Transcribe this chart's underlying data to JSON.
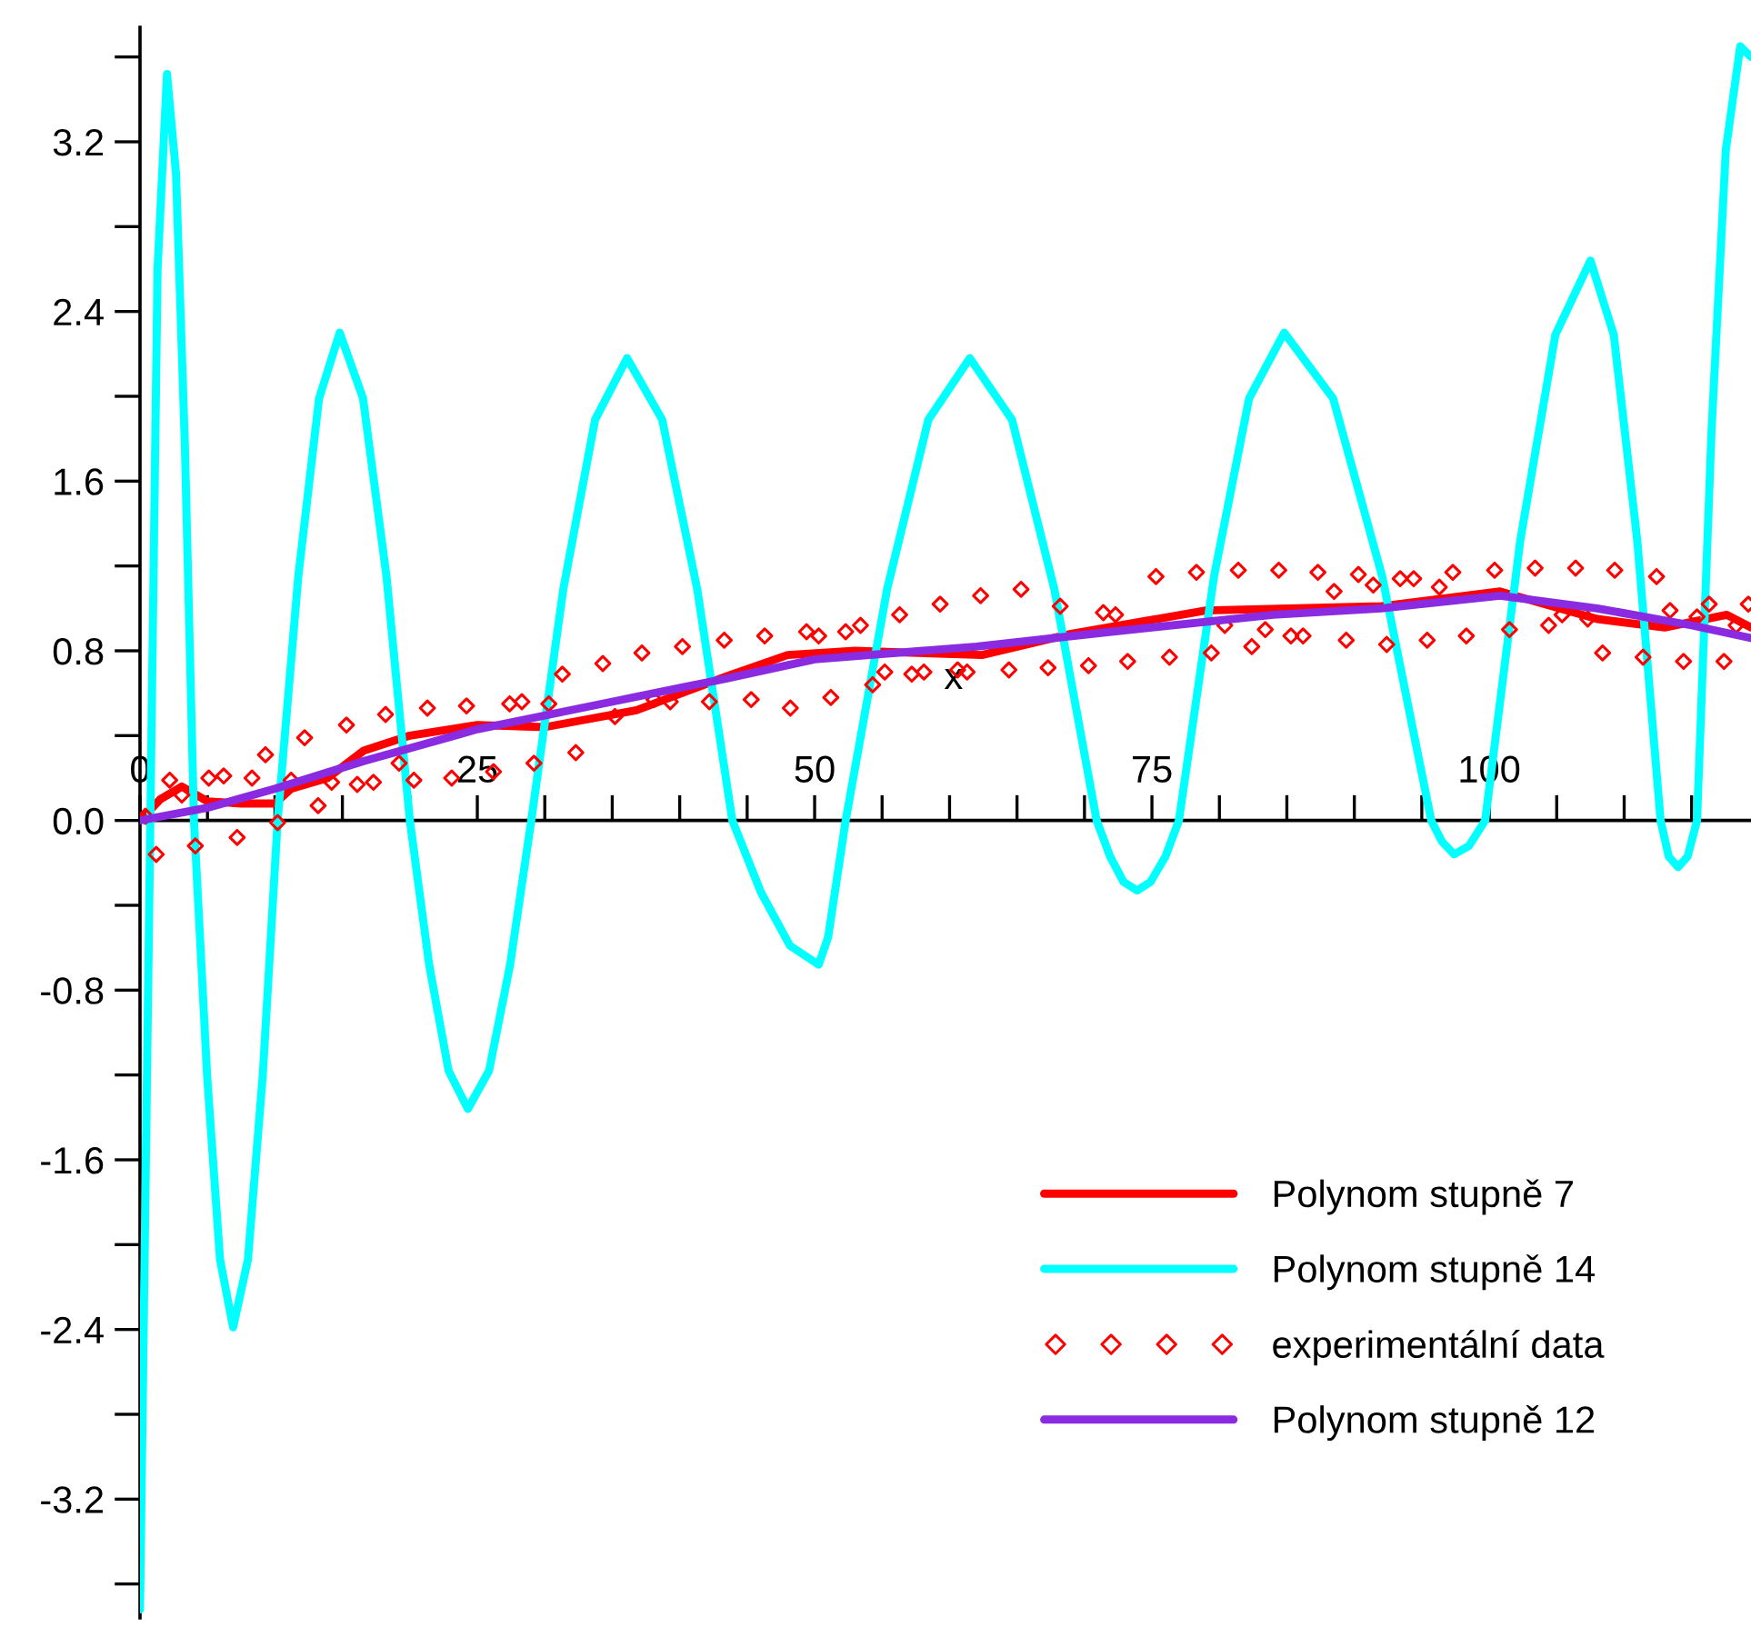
{
  "chart_data": {
    "type": "line",
    "xlabel": "x",
    "xlim": [
      0,
      119.4
    ],
    "ylim": [
      -3.76,
      3.74
    ],
    "xticks": [
      {
        "value": 0,
        "label": "0"
      },
      {
        "value": 5,
        "label": null
      },
      {
        "value": 10,
        "label": null
      },
      {
        "value": 15,
        "label": null
      },
      {
        "value": 20,
        "label": null
      },
      25,
      {
        "value": 30,
        "label": null
      },
      {
        "value": 35,
        "label": null
      },
      {
        "value": 40,
        "label": null
      },
      {
        "value": 45,
        "label": null
      },
      50,
      {
        "value": 55,
        "label": null
      },
      {
        "value": 60,
        "label": null
      },
      {
        "value": 65,
        "label": null
      },
      {
        "value": 70,
        "label": null
      },
      75,
      {
        "value": 80,
        "label": null
      },
      {
        "value": 85,
        "label": null
      },
      {
        "value": 90,
        "label": null
      },
      {
        "value": 95,
        "label": null
      },
      100,
      {
        "value": 105,
        "label": null
      },
      {
        "value": 110,
        "label": null
      },
      {
        "value": 115,
        "label": null
      }
    ],
    "yticks": [
      {
        "value": -3.6,
        "label": null
      },
      -3.2,
      {
        "value": -2.8,
        "label": null
      },
      -2.4,
      {
        "value": -2.0,
        "label": null
      },
      -1.6,
      {
        "value": -1.2,
        "label": null
      },
      -0.8,
      {
        "value": -0.4,
        "label": null
      },
      {
        "value": 0,
        "label": "0.0"
      },
      {
        "value": 0.4,
        "label": null
      },
      0.8,
      {
        "value": 1.2,
        "label": null
      },
      1.6,
      {
        "value": 2.0,
        "label": null
      },
      2.4,
      {
        "value": 2.8,
        "label": null
      },
      3.2,
      {
        "value": 3.6,
        "label": null
      }
    ],
    "grid": false,
    "legend": "bottom right",
    "series": [
      {
        "name": "Polynom stupně 7",
        "color": "#ff0000",
        "marker": "none",
        "line_style": "solid",
        "x": [
          0,
          1.5,
          3.1,
          5,
          7.5,
          10,
          11.2,
          13.9,
          16.6,
          20,
          25,
          30,
          36.8,
          43.5,
          48,
          53,
          62.4,
          69,
          79,
          92,
          100.8,
          108,
          113,
          117.6,
          119.4
        ],
        "values": [
          0,
          0.1,
          0.16,
          0.09,
          0.08,
          0.08,
          0.15,
          0.2,
          0.33,
          0.4,
          0.45,
          0.44,
          0.52,
          0.68,
          0.78,
          0.8,
          0.78,
          0.88,
          0.99,
          1.01,
          1.08,
          0.95,
          0.91,
          0.97,
          0.91
        ]
      },
      {
        "name": "Polynom stupně 14",
        "color": "#00ffff",
        "marker": "none",
        "line_style": "solid",
        "x": [
          0,
          1.3,
          2.0,
          2.67,
          3.33,
          4.0,
          4.97,
          5.93,
          6.9,
          8.0,
          9.1,
          10.2,
          11.73,
          13.27,
          14.8,
          16.53,
          18.27,
          20.0,
          21.43,
          22.87,
          24.3,
          25.87,
          27.43,
          29.0,
          31.37,
          33.73,
          36.1,
          38.7,
          41.3,
          43.9,
          46.03,
          48.17,
          50.3,
          51.0,
          52.3,
          55.37,
          58.43,
          61.5,
          64.63,
          67.77,
          70.9,
          71.9,
          72.9,
          73.9,
          74.9,
          76.0,
          77.0,
          79.6,
          82.2,
          84.8,
          88.43,
          92.07,
          95.7,
          96.5,
          97.4,
          98.5,
          99.7,
          102.3,
          104.9,
          107.5,
          109.23,
          110.97,
          112.7,
          113.3,
          114.0,
          114.7,
          115.4,
          116.47,
          117.53,
          118.6,
          119.4
        ],
        "values": [
          -3.72,
          2.6,
          3.52,
          3.05,
          1.76,
          0,
          -1.2,
          -2.07,
          -2.39,
          -2.07,
          -1.2,
          0,
          1.15,
          1.99,
          2.3,
          1.99,
          1.15,
          0,
          -0.68,
          -1.18,
          -1.36,
          -1.18,
          -0.68,
          0,
          1.09,
          1.89,
          2.18,
          1.89,
          1.09,
          0,
          -0.34,
          -0.59,
          -0.68,
          -0.55,
          0,
          1.09,
          1.89,
          2.18,
          1.89,
          1.09,
          0,
          -0.17,
          -0.29,
          -0.33,
          -0.29,
          -0.17,
          0,
          1.15,
          1.99,
          2.3,
          1.99,
          1.15,
          0,
          -0.1,
          -0.16,
          -0.12,
          0,
          1.32,
          2.29,
          2.64,
          2.29,
          1.32,
          0,
          -0.17,
          -0.22,
          -0.17,
          0,
          1.83,
          3.16,
          3.65,
          3.6
        ]
      },
      {
        "name": "experimentální data",
        "type": "scatter",
        "color": "#ff0000",
        "marker": "diamond",
        "x": [
          0.4,
          1.2,
          2.2,
          3.1,
          4.1,
          5.1,
          6.2,
          7.2,
          8.3,
          9.3,
          10.2,
          11.2,
          12.2,
          13.2,
          14.2,
          15.3,
          16.1,
          17.3,
          18.2,
          19.2,
          20.3,
          21.3,
          23.1,
          24.2,
          26.2,
          27.4,
          28.3,
          29.2,
          30.3,
          31.3,
          32.3,
          34.3,
          35.2,
          37.2,
          38.1,
          39.3,
          40.2,
          42.2,
          43.3,
          45.3,
          46.3,
          48.2,
          49.4,
          50.3,
          51.2,
          52.3,
          53.4,
          54.3,
          55.2,
          56.3,
          57.2,
          58.1,
          59.3,
          60.6,
          61.3,
          62.3,
          64.4,
          65.3,
          67.3,
          68.2,
          70.3,
          71.4,
          72.3,
          73.2,
          75.3,
          76.3,
          78.3,
          79.4,
          80.4,
          81.4,
          82.4,
          83.4,
          84.4,
          85.3,
          86.2,
          87.3,
          88.5,
          89.4,
          90.3,
          91.4,
          92.4,
          93.4,
          94.4,
          95.4,
          96.3,
          97.3,
          98.3,
          100.4,
          101.5,
          103.4,
          104.4,
          105.4,
          106.4,
          107.3,
          108.4,
          109.3,
          111.4,
          112.4,
          113.4,
          114.4,
          115.4,
          116.3,
          117.4,
          118.3,
          119.2
        ],
        "values": [
          0.02,
          -0.16,
          0.19,
          0.12,
          -0.12,
          0.2,
          0.21,
          -0.08,
          0.2,
          0.31,
          -0.01,
          0.19,
          0.39,
          0.07,
          0.18,
          0.45,
          0.17,
          0.18,
          0.5,
          0.27,
          0.19,
          0.53,
          0.2,
          0.54,
          0.23,
          0.55,
          0.56,
          0.27,
          0.55,
          0.69,
          0.32,
          0.74,
          0.49,
          0.79,
          0.57,
          0.56,
          0.82,
          0.56,
          0.85,
          0.57,
          0.87,
          0.53,
          0.89,
          0.87,
          0.58,
          0.89,
          0.92,
          0.64,
          0.7,
          0.97,
          0.69,
          0.7,
          1.02,
          0.71,
          0.7,
          1.06,
          0.71,
          1.09,
          0.72,
          1.01,
          0.73,
          0.98,
          0.97,
          0.75,
          1.15,
          0.77,
          1.17,
          0.79,
          0.92,
          1.18,
          0.82,
          0.9,
          1.18,
          0.87,
          0.87,
          1.17,
          1.08,
          0.85,
          1.16,
          1.11,
          0.83,
          1.14,
          1.14,
          0.85,
          1.1,
          1.17,
          0.87,
          1.18,
          0.9,
          1.19,
          0.92,
          0.97,
          1.19,
          0.95,
          0.79,
          1.18,
          0.77,
          1.15,
          0.99,
          0.75,
          0.96,
          1.02,
          0.75,
          0.92,
          1.02
        ]
      },
      {
        "name": "Polynom stupně 12",
        "color": "#8a2be2",
        "marker": "none",
        "line_style": "solid",
        "x": [
          0,
          5,
          10,
          16.6,
          25,
          35,
          43.5,
          50,
          62,
          72,
          84,
          92,
          100.8,
          108,
          115,
          119.4
        ],
        "values": [
          0,
          0.06,
          0.15,
          0.28,
          0.43,
          0.56,
          0.67,
          0.76,
          0.82,
          0.89,
          0.97,
          1.0,
          1.06,
          1.0,
          0.92,
          0.86
        ]
      }
    ]
  }
}
